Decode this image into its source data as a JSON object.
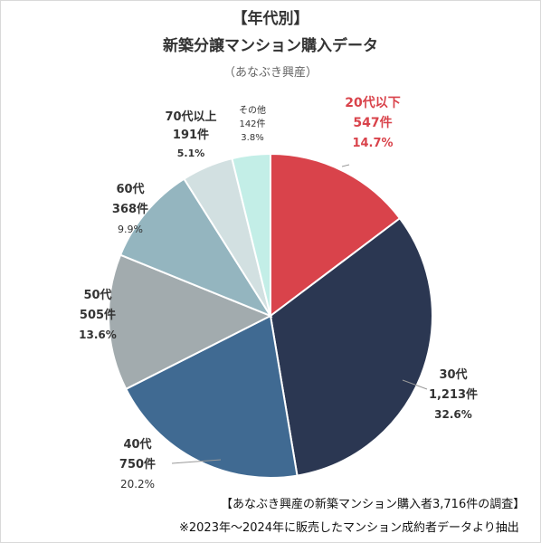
{
  "header": {
    "title_line1": "【年代別】",
    "title_line2": "新築分譲マンション購入データ",
    "subtitle": "（あなぶき興産）"
  },
  "footer": {
    "line1": "【あなぶき興産の新築マンション購入者3,716件の調査】",
    "line2": "※2023年～2024年に販売したマンション成約者データより抽出"
  },
  "chart_data": {
    "type": "pie",
    "title": "新築分譲マンション購入データ",
    "slices": [
      {
        "label": "20代以下",
        "count_label": "547件",
        "percent_label": "14.7%",
        "value": 547,
        "percent": 14.7,
        "color": "#d9434b",
        "label_color": "#d9434b"
      },
      {
        "label": "30代",
        "count_label": "1,213件",
        "percent_label": "32.6%",
        "value": 1213,
        "percent": 32.6,
        "color": "#2b3752",
        "label_color": "#333333"
      },
      {
        "label": "40代",
        "count_label": "750件",
        "percent_label": "20.2%",
        "value": 750,
        "percent": 20.2,
        "color": "#406a92",
        "label_color": "#333333"
      },
      {
        "label": "50代",
        "count_label": "505件",
        "percent_label": "13.6%",
        "value": 505,
        "percent": 13.6,
        "color": "#a2abae",
        "label_color": "#333333"
      },
      {
        "label": "60代",
        "count_label": "368件",
        "percent_label": "9.9%",
        "value": 368,
        "percent": 9.9,
        "color": "#94b5bf",
        "label_color": "#333333"
      },
      {
        "label": "70代以上",
        "count_label": "191件",
        "percent_label": "5.1%",
        "value": 191,
        "percent": 5.1,
        "color": "#d2e0e1",
        "label_color": "#333333"
      },
      {
        "label": "その他",
        "count_label": "142件",
        "percent_label": "3.8%",
        "value": 142,
        "percent": 3.8,
        "color": "#c3eee7",
        "label_color": "#333333"
      }
    ]
  }
}
